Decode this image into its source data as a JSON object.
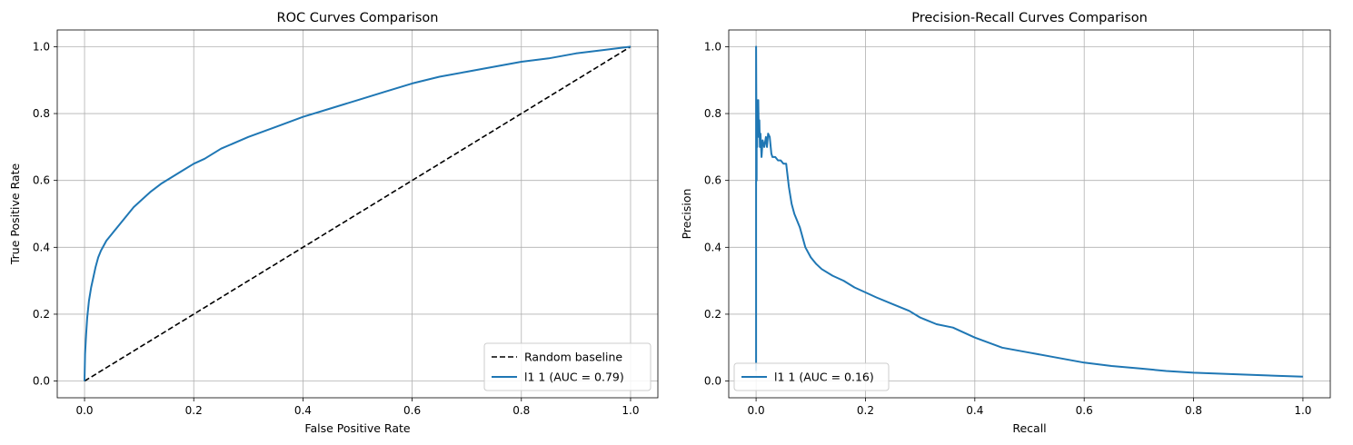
{
  "chart_data": [
    {
      "type": "line",
      "title": "ROC Curves Comparison",
      "xlabel": "False Positive Rate",
      "ylabel": "True Positive Rate",
      "xlim": [
        -0.05,
        1.05
      ],
      "ylim": [
        -0.05,
        1.05
      ],
      "xticks": [
        "0.0",
        "0.2",
        "0.4",
        "0.6",
        "0.8",
        "1.0"
      ],
      "yticks": [
        "0.0",
        "0.2",
        "0.4",
        "0.6",
        "0.8",
        "1.0"
      ],
      "grid": true,
      "legend_position": "lower-right",
      "series": [
        {
          "name": "Random baseline",
          "color": "#000000",
          "style": "dashed",
          "x": [
            0,
            1
          ],
          "y": [
            0,
            1
          ]
        },
        {
          "name": "l1 1 (AUC = 0.79)",
          "color": "#1f77b4",
          "style": "solid",
          "x": [
            0,
            0.001,
            0.003,
            0.005,
            0.008,
            0.012,
            0.016,
            0.02,
            0.025,
            0.03,
            0.04,
            0.05,
            0.06,
            0.07,
            0.08,
            0.09,
            0.1,
            0.12,
            0.14,
            0.16,
            0.18,
            0.2,
            0.22,
            0.25,
            0.3,
            0.35,
            0.4,
            0.45,
            0.5,
            0.55,
            0.6,
            0.65,
            0.7,
            0.75,
            0.8,
            0.85,
            0.9,
            0.95,
            1.0
          ],
          "y": [
            0,
            0.08,
            0.14,
            0.19,
            0.24,
            0.28,
            0.31,
            0.34,
            0.37,
            0.39,
            0.42,
            0.44,
            0.46,
            0.48,
            0.5,
            0.52,
            0.535,
            0.565,
            0.59,
            0.61,
            0.63,
            0.65,
            0.665,
            0.695,
            0.73,
            0.76,
            0.79,
            0.815,
            0.84,
            0.865,
            0.89,
            0.91,
            0.925,
            0.94,
            0.955,
            0.965,
            0.98,
            0.99,
            1.0
          ]
        }
      ]
    },
    {
      "type": "line",
      "title": "Precision-Recall Curves Comparison",
      "xlabel": "Recall",
      "ylabel": "Precision",
      "xlim": [
        -0.05,
        1.05
      ],
      "ylim": [
        -0.05,
        1.05
      ],
      "xticks": [
        "0.0",
        "0.2",
        "0.4",
        "0.6",
        "0.8",
        "1.0"
      ],
      "yticks": [
        "0.0",
        "0.2",
        "0.4",
        "0.6",
        "0.8",
        "1.0"
      ],
      "grid": true,
      "legend_position": "lower-left",
      "series": [
        {
          "name": "l1 1 (AUC = 0.16)",
          "color": "#1f77b4",
          "style": "solid",
          "x": [
            0,
            0,
            0.001,
            0.001,
            0.002,
            0.002,
            0.003,
            0.004,
            0.005,
            0.006,
            0.007,
            0.008,
            0.01,
            0.012,
            0.015,
            0.018,
            0.02,
            0.022,
            0.025,
            0.028,
            0.03,
            0.035,
            0.04,
            0.045,
            0.05,
            0.055,
            0.06,
            0.065,
            0.07,
            0.075,
            0.08,
            0.09,
            0.1,
            0.11,
            0.12,
            0.14,
            0.16,
            0.18,
            0.2,
            0.22,
            0.25,
            0.28,
            0.3,
            0.33,
            0.36,
            0.4,
            0.45,
            0.5,
            0.55,
            0.6,
            0.65,
            0.7,
            0.75,
            0.8,
            0.85,
            0.9,
            0.95,
            1.0
          ],
          "y": [
            0.03,
            1.0,
            0.6,
            0.8,
            0.7,
            0.84,
            0.76,
            0.84,
            0.73,
            0.78,
            0.7,
            0.74,
            0.67,
            0.72,
            0.7,
            0.73,
            0.7,
            0.74,
            0.73,
            0.68,
            0.67,
            0.67,
            0.66,
            0.66,
            0.65,
            0.65,
            0.58,
            0.53,
            0.5,
            0.48,
            0.46,
            0.4,
            0.37,
            0.35,
            0.335,
            0.315,
            0.3,
            0.28,
            0.265,
            0.25,
            0.23,
            0.21,
            0.19,
            0.17,
            0.16,
            0.13,
            0.1,
            0.085,
            0.07,
            0.055,
            0.045,
            0.038,
            0.03,
            0.025,
            0.022,
            0.019,
            0.016,
            0.013
          ]
        }
      ]
    }
  ]
}
